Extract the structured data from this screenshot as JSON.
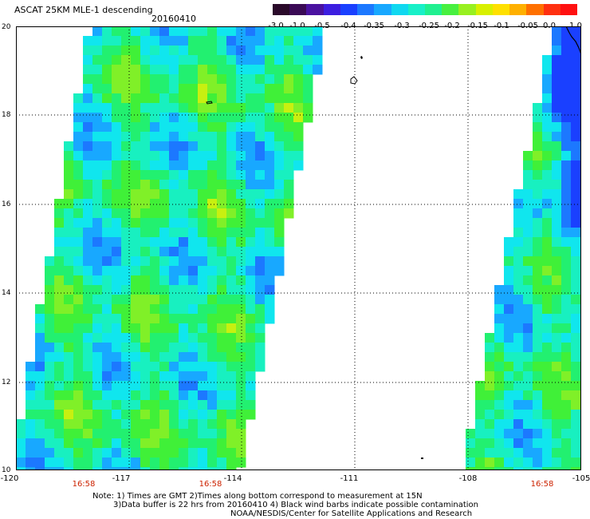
{
  "header": {
    "title": "ASCAT 25KM MLE-1 descending",
    "date": "20160410"
  },
  "colorbar": {
    "colors": [
      "#2a0a2a",
      "#3a0a55",
      "#4a12a0",
      "#3c1ee0",
      "#1a40ff",
      "#1c78ff",
      "#18a8ff",
      "#10d8f0",
      "#18f0c8",
      "#20f090",
      "#48f040",
      "#98f020",
      "#d8f000",
      "#ffe000",
      "#ffb000",
      "#ff7000",
      "#ff3010",
      "#ff1010"
    ],
    "tick_labels": [
      "-3.0",
      "-1.0",
      "-0.5",
      "-0.4",
      "-0.35",
      "-0.3",
      "-0.25",
      "-0.2",
      "-0.15",
      "-0.1",
      "-0.05",
      "0.0",
      "1.0"
    ]
  },
  "map": {
    "lon_range": [
      -120,
      -105
    ],
    "lat_range": [
      10,
      20
    ],
    "y_tick_labels": [
      "20",
      "18",
      "16",
      "14",
      "12",
      "10"
    ],
    "x_tick_labels": [
      "-120",
      "-117",
      "-114",
      "-111",
      "-108",
      "-105"
    ],
    "pass_times": [
      "16:58",
      "16:58",
      "16:58"
    ],
    "grid": true
  },
  "notes": [
    "Note: 1) Times are GMT 2)Times along bottom correspond to measurement at 15N",
    "3)Data buffer is 22 hrs from 20160410 4) Black wind barbs indicate possible contamination",
    "NOAA/NESDIS/Center for Satellite Applications and Research"
  ]
}
